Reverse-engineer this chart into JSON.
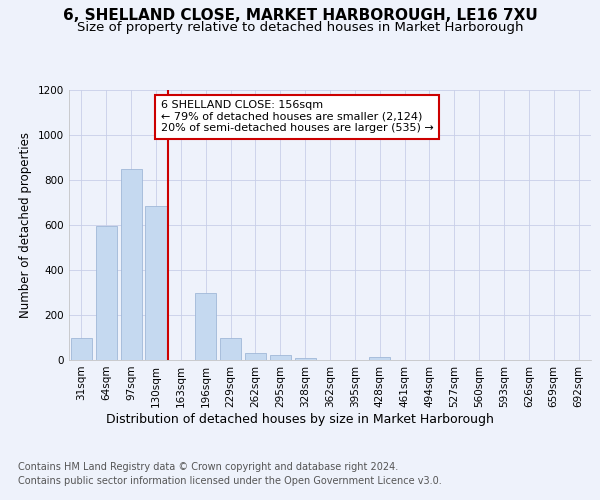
{
  "title": "6, SHELLAND CLOSE, MARKET HARBOROUGH, LE16 7XU",
  "subtitle": "Size of property relative to detached houses in Market Harborough",
  "xlabel": "Distribution of detached houses by size in Market Harborough",
  "ylabel": "Number of detached properties",
  "categories": [
    "31sqm",
    "64sqm",
    "97sqm",
    "130sqm",
    "163sqm",
    "196sqm",
    "229sqm",
    "262sqm",
    "295sqm",
    "328sqm",
    "362sqm",
    "395sqm",
    "428sqm",
    "461sqm",
    "494sqm",
    "527sqm",
    "560sqm",
    "593sqm",
    "626sqm",
    "659sqm",
    "692sqm"
  ],
  "values": [
    100,
    595,
    850,
    685,
    0,
    300,
    100,
    30,
    22,
    10,
    0,
    0,
    12,
    0,
    0,
    0,
    0,
    0,
    0,
    0,
    0
  ],
  "bar_color": "#c5d9f0",
  "bar_edge_color": "#a0b8d8",
  "red_line_index": 4,
  "annotation_text": "6 SHELLAND CLOSE: 156sqm\n← 79% of detached houses are smaller (2,124)\n20% of semi-detached houses are larger (535) →",
  "annotation_box_facecolor": "#ffffff",
  "annotation_box_edgecolor": "#cc0000",
  "red_line_color": "#cc0000",
  "ylim": [
    0,
    1200
  ],
  "yticks": [
    0,
    200,
    400,
    600,
    800,
    1000,
    1200
  ],
  "footer_line1": "Contains HM Land Registry data © Crown copyright and database right 2024.",
  "footer_line2": "Contains public sector information licensed under the Open Government Licence v3.0.",
  "background_color": "#eef2fb",
  "grid_color": "#c8cfe8",
  "title_fontsize": 11,
  "subtitle_fontsize": 9.5,
  "xlabel_fontsize": 9,
  "ylabel_fontsize": 8.5,
  "tick_fontsize": 7.5,
  "footer_fontsize": 7,
  "annotation_fontsize": 8
}
